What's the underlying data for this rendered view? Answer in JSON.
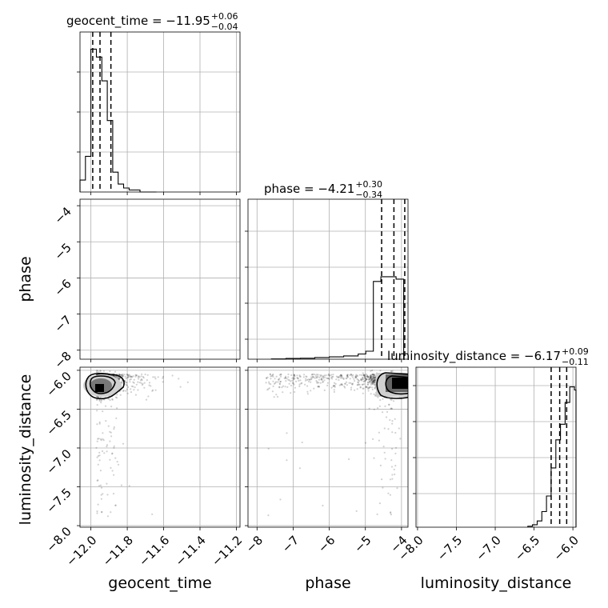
{
  "chart_data": {
    "type": "corner",
    "parameters": [
      "geocent_time",
      "phase",
      "luminosity_distance"
    ],
    "panel_titles": {
      "geocent_time": {
        "name": "geocent_time",
        "median": "−11.95",
        "plus": "+0.06",
        "minus": "−0.04"
      },
      "phase": {
        "name": "phase",
        "median": "−4.21",
        "plus": "+0.30",
        "minus": "−0.34"
      },
      "luminosity_distance": {
        "name": "luminosity_distance",
        "median": "−6.17",
        "plus": "+0.09",
        "minus": "−0.11"
      }
    },
    "axis_labels": {
      "x": [
        "geocent_time",
        "phase",
        "luminosity_distance"
      ],
      "y": [
        "phase",
        "luminosity_distance"
      ]
    },
    "ranges": {
      "geocent_time": [
        -12.06,
        -11.18
      ],
      "phase": [
        -8.25,
        -3.82
      ],
      "luminosity_distance": [
        -8.02,
        -5.96
      ]
    },
    "ticks": {
      "geocent_time": {
        "values": [
          -12.0,
          -11.8,
          -11.6,
          -11.4,
          -11.2
        ],
        "labels": [
          "−12.0",
          "−11.8",
          "−11.6",
          "−11.4",
          "−11.2"
        ]
      },
      "phase_x": {
        "values": [
          -8,
          -7,
          -6,
          -5,
          -4
        ],
        "labels": [
          "−8",
          "−7",
          "−6",
          "−5",
          "−4"
        ]
      },
      "phase_y": {
        "values": [
          -4,
          -5,
          -6,
          -7,
          -8
        ],
        "labels": [
          "−4",
          "−5",
          "−6",
          "−7",
          "−8"
        ]
      },
      "luminosity_distance": {
        "values": [
          -8.0,
          -7.5,
          -7.0,
          -6.5,
          -6.0
        ],
        "labels": [
          "−8.0",
          "−7.5",
          "−7.0",
          "−6.5",
          "−6.0"
        ]
      }
    },
    "quantiles": {
      "geocent_time": [
        -11.99,
        -11.95,
        -11.89
      ],
      "phase": [
        -4.55,
        -4.21,
        -3.91
      ],
      "luminosity_distance": [
        -6.28,
        -6.17,
        -6.08
      ]
    },
    "histograms": {
      "geocent_time": {
        "edges": [
          -12.06,
          -12.03,
          -12.0,
          -11.97,
          -11.94,
          -11.91,
          -11.88,
          -11.85,
          -11.82,
          -11.79,
          -11.76,
          -11.73,
          -11.7,
          -11.67,
          -11.64
        ],
        "counts": [
          3,
          9,
          36,
          34,
          28,
          18,
          5,
          2,
          1,
          0.5,
          0.5,
          0,
          0,
          0
        ]
      },
      "phase": {
        "edges": [
          -7.6,
          -7.2,
          -6.8,
          -6.4,
          -6.0,
          -5.6,
          -5.2,
          -4.99,
          -4.78,
          -4.57,
          -4.36,
          -4.15,
          -3.94
        ],
        "counts": [
          0.1,
          0.3,
          0.4,
          0.7,
          1.0,
          1.4,
          2.2,
          3.4,
          33,
          35,
          35,
          34
        ]
      },
      "luminosity_distance": {
        "edges": [
          -6.58,
          -6.52,
          -6.46,
          -6.4,
          -6.34,
          -6.28,
          -6.22,
          -6.16,
          -6.1,
          -6.04,
          -5.98,
          -5.96
        ],
        "counts": [
          0.3,
          0.8,
          2,
          5,
          10,
          19,
          28,
          33,
          40,
          45,
          44
        ]
      }
    },
    "grid": true
  }
}
